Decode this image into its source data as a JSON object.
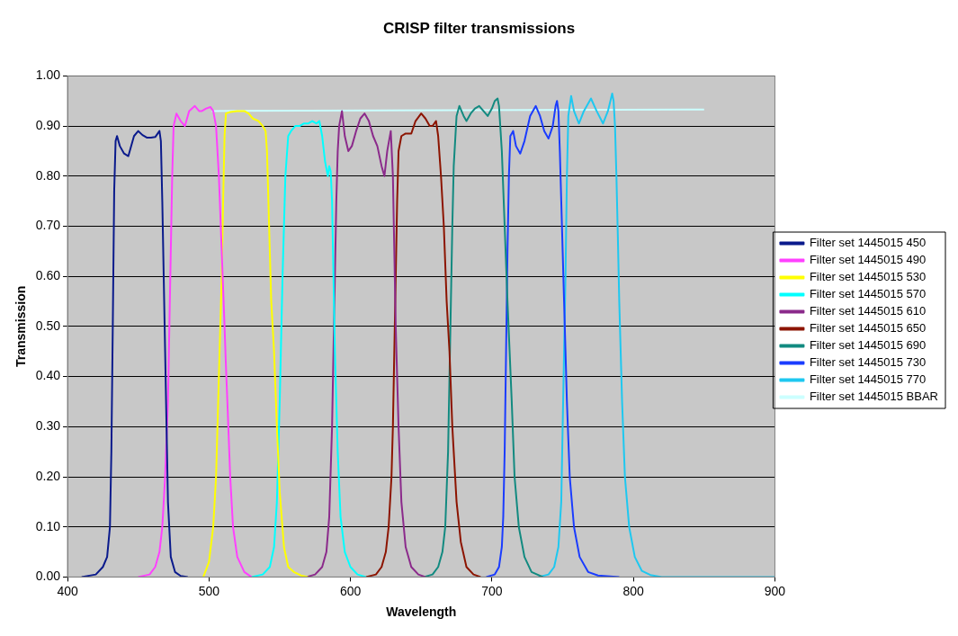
{
  "chart_data": {
    "type": "line",
    "title": "CRISP filter transmissions",
    "xlabel": "Wavelength",
    "ylabel": "Transmission",
    "xlim": [
      400,
      900
    ],
    "xticks": [
      400,
      500,
      600,
      700,
      800,
      900
    ],
    "ylim": [
      0,
      1
    ],
    "yticks": [
      {
        "value": 0,
        "label": "0.00"
      },
      {
        "value": 0.1,
        "label": "0.10"
      },
      {
        "value": 0.2,
        "label": "0.20"
      },
      {
        "value": 0.3,
        "label": "0.30"
      },
      {
        "value": 0.4,
        "label": "0.40"
      },
      {
        "value": 0.5,
        "label": "0.50"
      },
      {
        "value": 0.6,
        "label": "0.60"
      },
      {
        "value": 0.7,
        "label": "0.70"
      },
      {
        "value": 0.8,
        "label": "0.80"
      },
      {
        "value": 0.9,
        "label": "0.90"
      },
      {
        "value": 1,
        "label": "1.00"
      }
    ],
    "grid": "y",
    "legend": "right",
    "marker": "none",
    "line_style": "solid",
    "series": [
      {
        "name": "Filter set 1445015 450",
        "color": "#0a1a8c",
        "x": [
          410,
          420,
          425,
          428,
          430,
          431,
          432,
          433,
          434,
          435,
          437,
          440,
          443,
          447,
          450,
          453,
          456,
          459,
          462,
          465,
          466,
          467,
          468,
          469,
          470,
          471,
          473,
          476,
          480,
          485
        ],
        "values": [
          0,
          0.005,
          0.02,
          0.04,
          0.1,
          0.25,
          0.5,
          0.77,
          0.87,
          0.88,
          0.86,
          0.845,
          0.84,
          0.88,
          0.89,
          0.882,
          0.877,
          0.877,
          0.878,
          0.89,
          0.87,
          0.75,
          0.6,
          0.45,
          0.3,
          0.15,
          0.04,
          0.01,
          0.002,
          0
        ]
      },
      {
        "name": "Filter set 1445015 490",
        "color": "#ff40ff",
        "x": [
          450,
          458,
          462,
          465,
          467,
          469,
          471,
          472,
          473,
          474,
          475,
          477,
          480,
          483,
          486,
          490,
          493,
          495,
          498,
          501,
          503,
          505,
          507,
          509,
          511,
          512,
          513,
          515,
          517,
          520,
          525,
          530
        ],
        "values": [
          0,
          0.005,
          0.02,
          0.05,
          0.1,
          0.2,
          0.35,
          0.5,
          0.65,
          0.8,
          0.9,
          0.925,
          0.91,
          0.9,
          0.93,
          0.94,
          0.93,
          0.93,
          0.935,
          0.938,
          0.93,
          0.9,
          0.8,
          0.65,
          0.5,
          0.42,
          0.35,
          0.2,
          0.1,
          0.04,
          0.01,
          0
        ]
      },
      {
        "name": "Filter set 1445015 530",
        "color": "#ffff00",
        "x": [
          496,
          500,
          503,
          505,
          507,
          509,
          510,
          511,
          512,
          515,
          520,
          525,
          528,
          531,
          535,
          538,
          540,
          541,
          542,
          543,
          544,
          546,
          548,
          550,
          553,
          556,
          560,
          565,
          570
        ],
        "values": [
          0,
          0.03,
          0.1,
          0.2,
          0.4,
          0.6,
          0.75,
          0.88,
          0.925,
          0.928,
          0.93,
          0.93,
          0.925,
          0.915,
          0.91,
          0.9,
          0.89,
          0.85,
          0.75,
          0.65,
          0.55,
          0.45,
          0.3,
          0.17,
          0.06,
          0.02,
          0.01,
          0.003,
          0
        ]
      },
      {
        "name": "Filter set 1445015 570",
        "color": "#00ffff",
        "x": [
          530,
          538,
          543,
          546,
          548,
          550,
          552,
          554,
          556,
          558,
          561,
          564,
          567,
          570,
          573,
          576,
          578,
          580,
          582,
          584,
          585,
          586,
          587,
          588,
          589,
          590,
          591,
          593,
          596,
          600,
          605,
          611
        ],
        "values": [
          0,
          0.005,
          0.02,
          0.06,
          0.15,
          0.35,
          0.6,
          0.8,
          0.88,
          0.89,
          0.9,
          0.9,
          0.905,
          0.905,
          0.91,
          0.905,
          0.91,
          0.88,
          0.83,
          0.8,
          0.82,
          0.81,
          0.75,
          0.6,
          0.45,
          0.35,
          0.25,
          0.12,
          0.05,
          0.02,
          0.005,
          0
        ]
      },
      {
        "name": "Filter set 1445015 610",
        "color": "#8b2a8b",
        "x": [
          569,
          575,
          580,
          583,
          585,
          587,
          588,
          589,
          590,
          591,
          592,
          594,
          596,
          598.5,
          601,
          604,
          607,
          610,
          613,
          616,
          619,
          622,
          624,
          626,
          628.5,
          630,
          631,
          632,
          633,
          634,
          636,
          639,
          643,
          648,
          653
        ],
        "values": [
          0,
          0.005,
          0.02,
          0.05,
          0.12,
          0.3,
          0.45,
          0.6,
          0.75,
          0.85,
          0.9,
          0.93,
          0.88,
          0.85,
          0.86,
          0.89,
          0.915,
          0.925,
          0.91,
          0.88,
          0.86,
          0.82,
          0.8,
          0.85,
          0.89,
          0.8,
          0.65,
          0.5,
          0.4,
          0.3,
          0.15,
          0.06,
          0.02,
          0.005,
          0
        ]
      },
      {
        "name": "Filter set 1445015 650",
        "color": "#8c1400",
        "x": [
          611,
          618,
          622,
          625,
          627,
          629,
          630,
          631,
          632,
          633,
          634,
          636,
          639,
          643,
          646,
          650,
          653,
          656,
          658,
          660.5,
          662,
          664,
          666,
          668,
          670,
          672,
          675,
          678,
          682,
          687,
          692
        ],
        "values": [
          0,
          0.005,
          0.02,
          0.05,
          0.1,
          0.2,
          0.3,
          0.45,
          0.6,
          0.75,
          0.85,
          0.88,
          0.885,
          0.885,
          0.91,
          0.925,
          0.915,
          0.9,
          0.9,
          0.91,
          0.88,
          0.8,
          0.7,
          0.55,
          0.45,
          0.3,
          0.15,
          0.07,
          0.02,
          0.005,
          0
        ]
      },
      {
        "name": "Filter set 1445015 690",
        "color": "#128a80",
        "x": [
          652,
          658,
          662,
          665,
          667,
          669,
          670,
          671,
          672,
          673,
          675,
          677,
          680,
          682,
          685,
          688,
          691,
          694,
          697,
          700,
          702,
          704,
          705,
          707,
          709,
          711,
          712.5,
          714,
          716,
          719,
          723,
          728,
          736
        ],
        "values": [
          0,
          0.005,
          0.02,
          0.05,
          0.1,
          0.25,
          0.4,
          0.55,
          0.7,
          0.82,
          0.92,
          0.94,
          0.92,
          0.91,
          0.925,
          0.935,
          0.94,
          0.93,
          0.92,
          0.935,
          0.95,
          0.955,
          0.94,
          0.85,
          0.7,
          0.55,
          0.45,
          0.35,
          0.2,
          0.1,
          0.04,
          0.01,
          0
        ]
      },
      {
        "name": "Filter set 1445015 730",
        "color": "#1a3cff",
        "x": [
          696,
          702,
          705,
          707,
          708,
          709,
          710,
          711,
          712,
          713,
          715,
          717,
          720,
          723,
          727,
          731,
          734,
          737,
          740,
          743,
          745,
          746,
          747,
          748,
          749,
          750,
          751,
          752,
          753,
          755,
          758,
          762,
          768,
          775,
          790
        ],
        "values": [
          0,
          0.005,
          0.02,
          0.06,
          0.12,
          0.25,
          0.45,
          0.65,
          0.8,
          0.88,
          0.89,
          0.86,
          0.845,
          0.87,
          0.92,
          0.94,
          0.92,
          0.89,
          0.875,
          0.9,
          0.94,
          0.95,
          0.93,
          0.85,
          0.75,
          0.65,
          0.55,
          0.45,
          0.35,
          0.2,
          0.1,
          0.04,
          0.01,
          0.003,
          0
        ]
      },
      {
        "name": "Filter set 1445015 770",
        "color": "#1ec8f0",
        "x": [
          733,
          740,
          744,
          747,
          749,
          750,
          751,
          752,
          753,
          754,
          756,
          758,
          761.5,
          765,
          770,
          774,
          778.5,
          782,
          785,
          786,
          787,
          788,
          789,
          790,
          791,
          792,
          794,
          797,
          801,
          806,
          812,
          820,
          900
        ],
        "values": [
          0,
          0.005,
          0.02,
          0.06,
          0.15,
          0.3,
          0.45,
          0.6,
          0.8,
          0.92,
          0.96,
          0.93,
          0.905,
          0.93,
          0.955,
          0.93,
          0.905,
          0.93,
          0.965,
          0.95,
          0.9,
          0.8,
          0.68,
          0.55,
          0.45,
          0.35,
          0.2,
          0.1,
          0.04,
          0.012,
          0.004,
          0,
          0
        ]
      },
      {
        "name": "Filter set 1445015 BBAR",
        "color": "#ccffff",
        "x": [
          502,
          850
        ],
        "values": [
          0.93,
          0.933
        ]
      }
    ]
  }
}
